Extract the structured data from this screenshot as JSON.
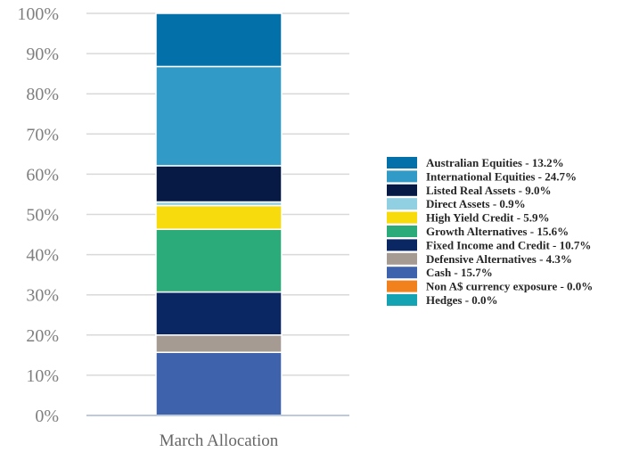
{
  "chart_data": {
    "type": "bar",
    "stacked": true,
    "categories": [
      "March Allocation"
    ],
    "yaxis": {
      "min": 0,
      "max": 100,
      "step": 10,
      "tick_labels": [
        "0%",
        "10%",
        "20%",
        "30%",
        "40%",
        "50%",
        "60%",
        "70%",
        "80%",
        "90%",
        "100%"
      ]
    },
    "grid": true,
    "legend_position": "right",
    "series": [
      {
        "name": "Cash",
        "value": 15.7,
        "legend_label": "Cash - 15.7%",
        "color": "#3f62ad"
      },
      {
        "name": "Defensive Alternatives",
        "value": 4.3,
        "legend_label": "Defensive Alternatives - 4.3%",
        "color": "#a59b93"
      },
      {
        "name": "Fixed Income and Credit",
        "value": 10.7,
        "legend_label": "Fixed Income and Credit - 10.7%",
        "color": "#0b2763"
      },
      {
        "name": "Growth Alternatives",
        "value": 15.6,
        "legend_label": "Growth Alternatives - 15.6%",
        "color": "#2bab79"
      },
      {
        "name": "High Yield Credit",
        "value": 5.9,
        "legend_label": "High Yield Credit - 5.9%",
        "color": "#f7db0c"
      },
      {
        "name": "Direct Assets",
        "value": 0.9,
        "legend_label": "Direct Assets - 0.9%",
        "color": "#91cfe3"
      },
      {
        "name": "Listed Real Assets",
        "value": 9.0,
        "legend_label": "Listed Real Assets - 9.0%",
        "color": "#061a45"
      },
      {
        "name": "International Equities",
        "value": 24.7,
        "legend_label": "International Equities - 24.7%",
        "color": "#319ac6"
      },
      {
        "name": "Australian Equities",
        "value": 13.2,
        "legend_label": "Australian Equities - 13.2%",
        "color": "#0470a9"
      },
      {
        "name": "Non A$ currency exposure",
        "value": 0.0,
        "legend_label": "Non A$ currency exposure - 0.0%",
        "color": "#f0811c"
      },
      {
        "name": "Hedges",
        "value": 0.0,
        "legend_label": "Hedges - 0.0%",
        "color": "#13a3b2"
      }
    ],
    "legend_order": [
      "Australian Equities",
      "International Equities",
      "Listed Real Assets",
      "Direct Assets",
      "High Yield Credit",
      "Growth Alternatives",
      "Fixed Income and Credit",
      "Defensive Alternatives",
      "Cash",
      "Non A$ currency exposure",
      "Hedges"
    ]
  }
}
